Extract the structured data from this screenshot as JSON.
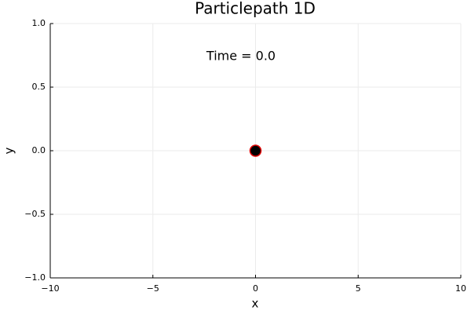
{
  "chart_data": {
    "type": "scatter",
    "title": "Particlepath 1D",
    "annotation": "Time = 0.0",
    "x_label": "x",
    "y_label": "y",
    "x": [
      0
    ],
    "values": [
      0
    ],
    "color": "#000000",
    "edge_color": "#e00000",
    "xlim": [
      -10,
      10
    ],
    "ylim": [
      -1,
      1
    ],
    "xticks": [
      {
        "value": -10,
        "label": "−10"
      },
      {
        "value": -5,
        "label": "−5"
      },
      0,
      5,
      10
    ],
    "yticks": [
      {
        "value": -1,
        "label": "−1.0"
      },
      {
        "value": -0.5,
        "label": "−0.5"
      },
      {
        "value": 0,
        "label": "0.0"
      },
      0.5,
      {
        "value": 1,
        "label": "1.0"
      }
    ],
    "grid": true
  }
}
